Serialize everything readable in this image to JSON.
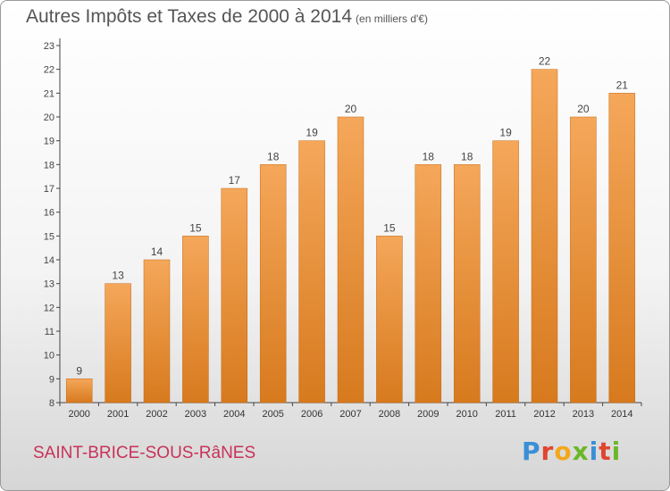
{
  "header": {
    "title": "Autres Impôts et Taxes de 2000 à 2014",
    "unit": "(en milliers d'€)"
  },
  "footer": {
    "commune": "SAINT-BRICE-SOUS-RâNES",
    "logo": "Proxiti"
  },
  "colors": {
    "bar_top": "#f5a75a",
    "bar_bottom": "#d77a1e",
    "title": "#555555",
    "commune": "#c8325a",
    "logo_letters": [
      "#3a8fd6",
      "#e0452f",
      "#f3a71a",
      "#6ab82a",
      "#3a8fd6",
      "#e0452f",
      "#6ab82a"
    ]
  },
  "chart_data": {
    "type": "bar",
    "title": "Autres Impôts et Taxes de 2000 à 2014",
    "subtitle": "(en milliers d'€)",
    "categories": [
      "2000",
      "2001",
      "2002",
      "2003",
      "2004",
      "2005",
      "2006",
      "2007",
      "2008",
      "2009",
      "2010",
      "2011",
      "2012",
      "2013",
      "2014"
    ],
    "values": [
      9,
      13,
      14,
      15,
      17,
      18,
      19,
      20,
      15,
      18,
      18,
      19,
      22,
      20,
      21
    ],
    "ylim": [
      8,
      23
    ],
    "yticks": [
      8,
      9,
      10,
      11,
      12,
      13,
      14,
      15,
      16,
      17,
      18,
      19,
      20,
      21,
      22,
      23
    ],
    "grid": false,
    "data_labels": true
  }
}
